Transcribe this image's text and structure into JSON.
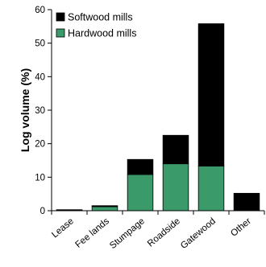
{
  "chart_data": {
    "type": "bar",
    "stacked": true,
    "categories": [
      "Lease",
      "Fee lands",
      "Stumpage",
      "Roadside",
      "Gatewood",
      "Other"
    ],
    "series": [
      {
        "name": "Hardwood mills",
        "color": "#3a9a6a",
        "values": [
          0.2,
          1.2,
          10.8,
          14.0,
          13.3,
          0
        ]
      },
      {
        "name": "Softwood mills",
        "color": "#000000",
        "values": [
          0.1,
          0.3,
          4.5,
          8.5,
          42.5,
          5.2
        ]
      }
    ],
    "ylabel": "Log volume (%)",
    "ylim": [
      0,
      60
    ],
    "yticks": [
      0,
      10,
      20,
      30,
      40,
      50,
      60
    ],
    "legend": {
      "placement": "top-left",
      "order": [
        "Softwood mills",
        "Hardwood mills"
      ]
    },
    "grid": false
  }
}
